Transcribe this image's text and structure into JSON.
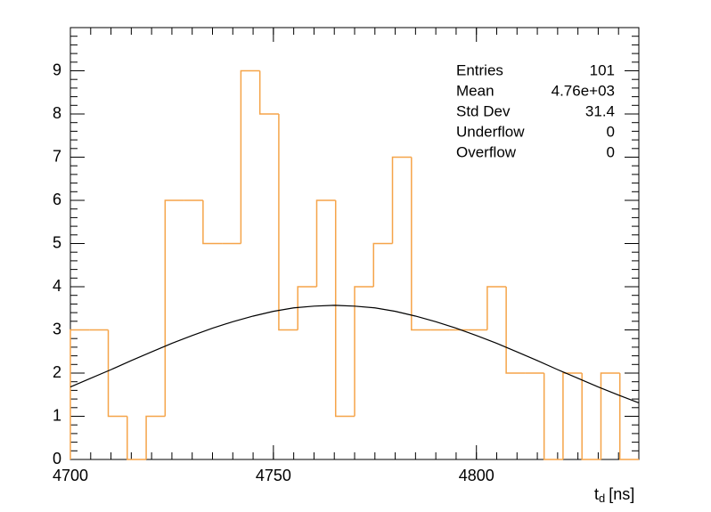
{
  "chart_data": {
    "type": "histogram",
    "x_label": {
      "symbol": "t",
      "subscript": "d",
      "unit": "[ns]"
    },
    "bins": [
      4700,
      4704.67,
      4709.33,
      4714,
      4718.67,
      4723.33,
      4728,
      4732.67,
      4737.33,
      4742,
      4746.67,
      4751.33,
      4756,
      4760.67,
      4765.33,
      4770,
      4774.67,
      4779.33,
      4784,
      4788.67,
      4793.33,
      4798,
      4802.67,
      4807.33,
      4812,
      4816.67,
      4821.33,
      4826,
      4830.67,
      4835.33,
      4840
    ],
    "values": [
      3,
      3,
      1,
      0,
      1,
      6,
      6,
      5,
      5,
      9,
      8,
      3,
      4,
      6,
      1,
      4,
      5,
      7,
      3,
      3,
      3,
      3,
      4,
      2,
      2,
      0,
      2,
      0,
      2,
      0
    ],
    "color": "#f5a449",
    "fit": {
      "color": "#000000",
      "x": [
        4700,
        4705,
        4710,
        4715,
        4720,
        4725,
        4730,
        4735,
        4740,
        4745,
        4750,
        4755,
        4760,
        4765,
        4770,
        4775,
        4780,
        4785,
        4790,
        4795,
        4800,
        4805,
        4810,
        4815,
        4820,
        4825,
        4830,
        4835,
        4840
      ],
      "values": [
        1.68,
        1.88,
        2.08,
        2.29,
        2.49,
        2.69,
        2.87,
        3.04,
        3.19,
        3.32,
        3.43,
        3.51,
        3.55,
        3.57,
        3.55,
        3.51,
        3.43,
        3.32,
        3.19,
        3.04,
        2.87,
        2.69,
        2.49,
        2.29,
        2.08,
        1.88,
        1.68,
        1.49,
        1.31
      ]
    },
    "xlim": [
      4700,
      4840
    ],
    "xticks": [
      4700,
      4750,
      4800
    ],
    "ylim": [
      0,
      10
    ],
    "yticks": [
      0,
      1,
      2,
      3,
      4,
      5,
      6,
      7,
      8,
      9
    ],
    "stats": [
      {
        "label": "Entries",
        "value": 101
      },
      {
        "label": "Mean",
        "value": "4.76e+03"
      },
      {
        "label": "Std Dev",
        "value": 31.4
      },
      {
        "label": "Underflow",
        "value": 0
      },
      {
        "label": "Overflow",
        "value": 0
      }
    ]
  }
}
